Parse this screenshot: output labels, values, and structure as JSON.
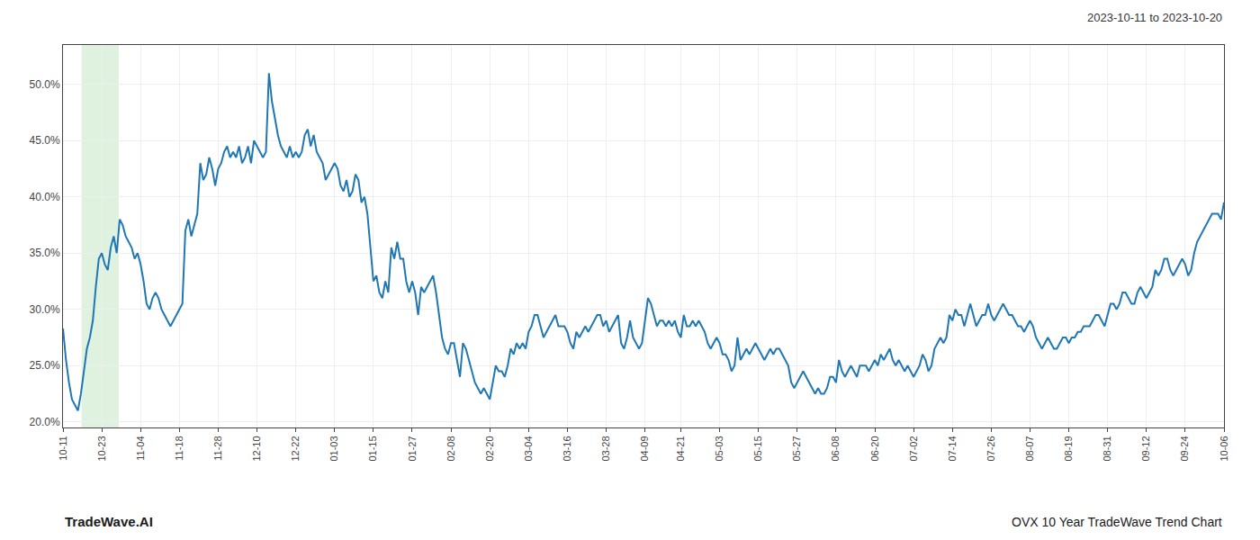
{
  "chart_data": {
    "type": "line",
    "title": "OVX 10 Year TradeWave Trend Chart",
    "subtitle": "2023-10-11 to 2023-10-20",
    "annotations": [
      "TradeWave.AI"
    ],
    "grid": true,
    "ylim": [
      19.5,
      53.5
    ],
    "yticks": [
      {
        "value": 20.0,
        "label": "20.0%"
      },
      {
        "value": 25.0,
        "label": "25.0%"
      },
      {
        "value": 30.0,
        "label": "30.0%"
      },
      {
        "value": 35.0,
        "label": "35.0%"
      },
      {
        "value": 40.0,
        "label": "40.0%"
      },
      {
        "value": 45.0,
        "label": "45.0%"
      },
      {
        "value": 50.0,
        "label": "50.0%"
      }
    ],
    "categories": [
      "10-11",
      null,
      null,
      null,
      null,
      null,
      null,
      null,
      null,
      null,
      null,
      null,
      null,
      "10-23",
      null,
      null,
      null,
      null,
      null,
      null,
      null,
      null,
      null,
      null,
      null,
      null,
      "11-04",
      null,
      null,
      null,
      null,
      null,
      null,
      null,
      null,
      null,
      null,
      null,
      null,
      "11-18",
      null,
      null,
      null,
      null,
      null,
      null,
      null,
      null,
      null,
      null,
      null,
      null,
      "11-28",
      null,
      null,
      null,
      null,
      null,
      null,
      null,
      null,
      null,
      null,
      null,
      null,
      "12-10",
      null,
      null,
      null,
      null,
      null,
      null,
      null,
      null,
      null,
      null,
      null,
      null,
      "12-22",
      null,
      null,
      null,
      null,
      null,
      null,
      null,
      null,
      null,
      null,
      null,
      null,
      "01-03",
      null,
      null,
      null,
      null,
      null,
      null,
      null,
      null,
      null,
      null,
      null,
      null,
      "01-15",
      null,
      null,
      null,
      null,
      null,
      null,
      null,
      null,
      null,
      null,
      null,
      null,
      "01-27",
      null,
      null,
      null,
      null,
      null,
      null,
      null,
      null,
      null,
      null,
      null,
      null,
      "02-08",
      null,
      null,
      null,
      null,
      null,
      null,
      null,
      null,
      null,
      null,
      null,
      null,
      "02-20",
      null,
      null,
      null,
      null,
      null,
      null,
      null,
      null,
      null,
      null,
      null,
      null,
      "03-04",
      null,
      null,
      null,
      null,
      null,
      null,
      null,
      null,
      null,
      null,
      null,
      null,
      "03-16",
      null,
      null,
      null,
      null,
      null,
      null,
      null,
      null,
      null,
      null,
      null,
      null,
      "03-28",
      null,
      null,
      null,
      null,
      null,
      null,
      null,
      null,
      null,
      null,
      null,
      null,
      "04-09",
      null,
      null,
      null,
      null,
      null,
      null,
      null,
      null,
      null,
      null,
      null,
      "04-21",
      null,
      null,
      null,
      null,
      null,
      null,
      null,
      null,
      null,
      null,
      null,
      null,
      "05-03",
      null,
      null,
      null,
      null,
      null,
      null,
      null,
      null,
      null,
      null,
      null,
      null,
      "05-15",
      null,
      null,
      null,
      null,
      null,
      null,
      null,
      null,
      null,
      null,
      null,
      null,
      "05-27",
      null,
      null,
      null,
      null,
      null,
      null,
      null,
      null,
      null,
      null,
      null,
      null,
      "06-08",
      null,
      null,
      null,
      null,
      null,
      null,
      null,
      null,
      null,
      null,
      null,
      null,
      "06-20",
      null,
      null,
      null,
      null,
      null,
      null,
      null,
      null,
      null,
      null,
      null,
      null,
      "07-02",
      null,
      null,
      null,
      null,
      null,
      null,
      null,
      null,
      null,
      null,
      null,
      null,
      "07-14",
      null,
      null,
      null,
      null,
      null,
      null,
      null,
      null,
      null,
      null,
      null,
      null,
      "07-26",
      null,
      null,
      null,
      null,
      null,
      null,
      null,
      null,
      null,
      null,
      null,
      null,
      "08-07",
      null,
      null,
      null,
      null,
      null,
      null,
      null,
      null,
      null,
      null,
      null,
      null,
      "08-19",
      null,
      null,
      null,
      null,
      null,
      null,
      null,
      null,
      null,
      null,
      null,
      null,
      "08-31",
      null,
      null,
      null,
      null,
      null,
      null,
      null,
      null,
      null,
      null,
      null,
      null,
      "09-12",
      null,
      null,
      null,
      null,
      null,
      null,
      null,
      null,
      null,
      null,
      null,
      null,
      "09-24",
      null,
      null,
      null,
      null,
      null,
      null,
      null,
      null,
      null,
      null,
      null,
      null,
      "10-06"
    ],
    "values": [
      28.3,
      25.5,
      23.5,
      22.0,
      21.5,
      21.0,
      22.5,
      24.5,
      26.5,
      27.5,
      29.0,
      32.0,
      34.5,
      35.0,
      34.0,
      33.5,
      35.5,
      36.5,
      35.0,
      38.0,
      37.5,
      36.5,
      36.0,
      35.5,
      34.5,
      35.0,
      34.0,
      32.5,
      30.5,
      30.0,
      31.0,
      31.5,
      31.0,
      30.0,
      29.5,
      29.0,
      28.5,
      29.0,
      29.5,
      30.0,
      30.5,
      37.0,
      38.0,
      36.5,
      37.5,
      38.5,
      43.0,
      41.5,
      42.0,
      43.5,
      42.5,
      41.0,
      42.5,
      43.0,
      44.0,
      44.5,
      43.5,
      44.0,
      43.5,
      44.5,
      43.0,
      43.5,
      44.5,
      43.0,
      45.0,
      44.5,
      44.0,
      43.5,
      44.0,
      51.0,
      48.5,
      47.0,
      45.5,
      44.5,
      44.0,
      43.5,
      44.5,
      43.5,
      44.0,
      43.5,
      44.0,
      45.5,
      46.0,
      44.5,
      45.5,
      44.0,
      43.5,
      43.0,
      41.5,
      42.0,
      42.5,
      43.0,
      42.5,
      41.0,
      40.5,
      41.5,
      40.0,
      40.5,
      42.0,
      41.5,
      39.5,
      40.0,
      38.5,
      35.5,
      32.5,
      33.0,
      31.5,
      31.0,
      32.5,
      31.5,
      35.5,
      34.5,
      36.0,
      34.5,
      34.5,
      32.5,
      31.5,
      32.5,
      31.5,
      29.5,
      32.0,
      31.5,
      32.0,
      32.5,
      33.0,
      31.5,
      29.5,
      27.5,
      26.5,
      26.0,
      27.0,
      27.0,
      25.5,
      24.0,
      27.0,
      26.5,
      25.5,
      24.5,
      23.5,
      23.0,
      22.5,
      23.0,
      22.5,
      22.0,
      23.5,
      25.0,
      24.5,
      24.5,
      24.0,
      25.0,
      26.5,
      26.0,
      27.0,
      26.5,
      27.0,
      26.5,
      28.0,
      28.5,
      29.5,
      29.5,
      28.5,
      27.5,
      28.0,
      28.5,
      29.0,
      29.5,
      28.5,
      28.5,
      28.5,
      28.0,
      27.0,
      26.5,
      28.0,
      27.5,
      28.0,
      28.5,
      28.0,
      28.5,
      29.0,
      29.5,
      29.5,
      28.5,
      29.0,
      28.0,
      28.5,
      29.0,
      29.5,
      27.0,
      26.5,
      27.5,
      29.0,
      27.5,
      27.0,
      26.5,
      27.0,
      29.0,
      31.0,
      30.5,
      29.5,
      28.5,
      29.0,
      29.0,
      28.5,
      29.0,
      28.5,
      29.0,
      28.0,
      27.5,
      29.5,
      28.5,
      28.5,
      29.0,
      28.5,
      29.0,
      28.5,
      28.0,
      27.0,
      26.5,
      27.0,
      27.5,
      27.0,
      26.0,
      26.0,
      25.5,
      24.5,
      25.0,
      27.5,
      25.5,
      26.0,
      26.5,
      26.0,
      26.5,
      27.0,
      26.5,
      26.0,
      25.5,
      26.0,
      26.5,
      26.0,
      26.5,
      26.5,
      26.0,
      25.5,
      25.0,
      23.5,
      23.0,
      23.5,
      24.0,
      24.5,
      24.0,
      23.5,
      23.0,
      22.5,
      23.0,
      22.5,
      22.5,
      23.0,
      24.0,
      24.0,
      23.5,
      25.5,
      24.5,
      24.0,
      24.5,
      25.0,
      24.5,
      24.0,
      25.0,
      25.0,
      25.0,
      24.5,
      25.0,
      25.5,
      25.0,
      26.0,
      25.5,
      26.0,
      26.5,
      25.5,
      25.0,
      25.5,
      25.0,
      24.5,
      25.0,
      24.5,
      24.0,
      24.5,
      25.0,
      26.0,
      25.5,
      24.5,
      25.0,
      26.5,
      27.0,
      27.5,
      27.0,
      27.5,
      29.5,
      29.0,
      30.0,
      29.5,
      29.5,
      28.5,
      29.5,
      30.5,
      29.5,
      28.5,
      29.0,
      29.5,
      29.5,
      30.5,
      29.5,
      29.0,
      29.5,
      30.0,
      30.5,
      30.0,
      29.5,
      29.5,
      29.0,
      28.5,
      28.5,
      28.0,
      28.5,
      29.0,
      28.5,
      27.5,
      27.0,
      26.5,
      27.0,
      27.5,
      27.0,
      26.5,
      26.5,
      27.0,
      27.5,
      27.5,
      27.0,
      27.5,
      27.5,
      28.0,
      28.0,
      28.5,
      28.5,
      28.5,
      29.0,
      29.5,
      29.5,
      29.0,
      28.5,
      29.5,
      30.5,
      30.5,
      30.0,
      30.5,
      31.5,
      31.5,
      31.0,
      30.5,
      30.5,
      31.5,
      32.0,
      31.5,
      31.0,
      31.5,
      32.0,
      33.5,
      33.0,
      33.5,
      34.5,
      34.5,
      33.5,
      33.0,
      33.5,
      34.0,
      34.5,
      34.0,
      33.0,
      33.5,
      35.0,
      36.0,
      36.5,
      37.0,
      37.5,
      38.0,
      38.5,
      38.5,
      38.5,
      38.0,
      39.5
    ]
  }
}
